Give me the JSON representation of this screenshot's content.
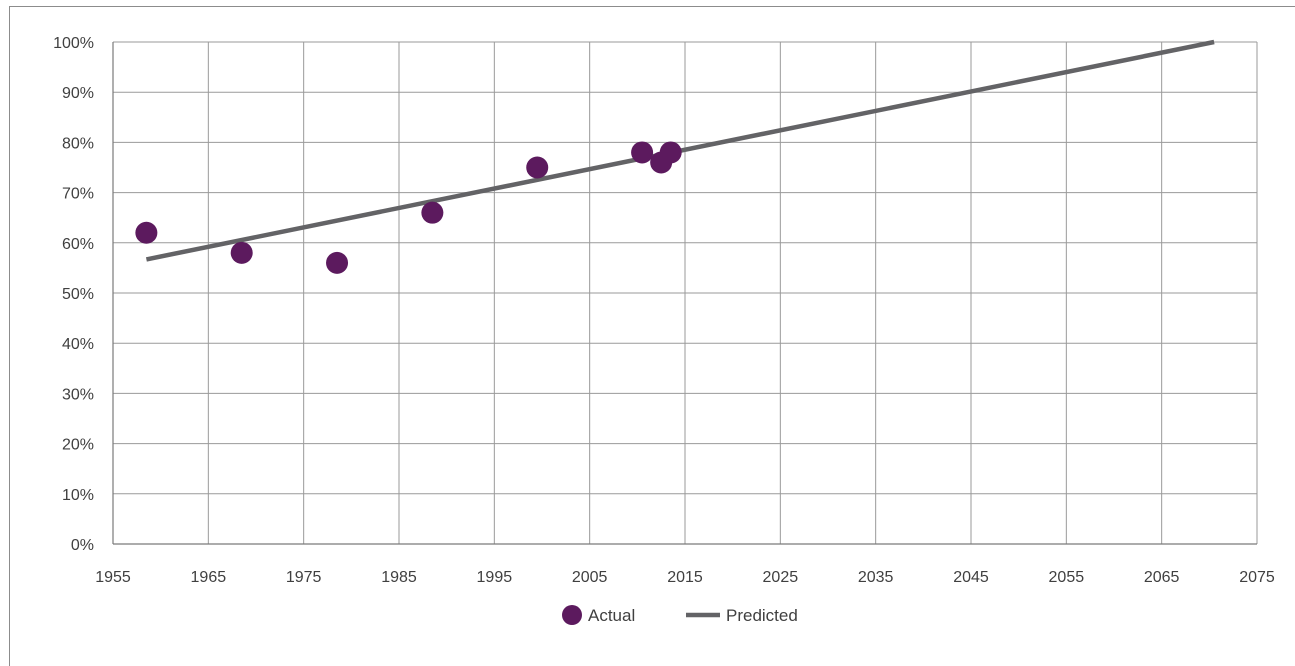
{
  "chart_data": {
    "type": "scatter",
    "title": "",
    "xlabel": "",
    "ylabel": "",
    "xlim": [
      1955,
      2075
    ],
    "ylim": [
      0,
      100
    ],
    "x_ticks": [
      1955,
      1965,
      1975,
      1985,
      1995,
      2005,
      2015,
      2025,
      2035,
      2045,
      2055,
      2065,
      2075
    ],
    "y_ticks": [
      0,
      10,
      20,
      30,
      40,
      50,
      60,
      70,
      80,
      90,
      100
    ],
    "y_tick_suffix": "%",
    "grid": true,
    "legend_position": "bottom",
    "series": [
      {
        "name": "Actual",
        "kind": "scatter",
        "color": "#5c1a5e",
        "points": [
          {
            "x": 1958.5,
            "y": 62
          },
          {
            "x": 1968.5,
            "y": 58
          },
          {
            "x": 1978.5,
            "y": 56
          },
          {
            "x": 1988.5,
            "y": 66
          },
          {
            "x": 1999.5,
            "y": 75
          },
          {
            "x": 2010.5,
            "y": 78
          },
          {
            "x": 2012.5,
            "y": 76
          },
          {
            "x": 2013.5,
            "y": 78
          }
        ]
      },
      {
        "name": "Predicted",
        "kind": "line",
        "color": "#636366",
        "points": [
          {
            "x": 1958.5,
            "y": 56.7
          },
          {
            "x": 2070.5,
            "y": 100
          }
        ]
      }
    ]
  }
}
